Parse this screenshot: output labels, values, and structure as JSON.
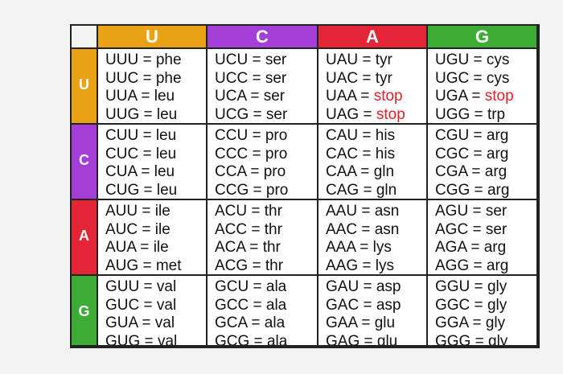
{
  "colors": {
    "U": "#e8a213",
    "C": "#a33fd7",
    "A": "#e32535",
    "G": "#3cac35",
    "stop": "#e3222a"
  },
  "column_headers": [
    "U",
    "C",
    "A",
    "G"
  ],
  "row_headers": [
    "U",
    "C",
    "A",
    "G"
  ],
  "cells": [
    [
      [
        {
          "codon": "UUU",
          "aa": "phe",
          "stop": false
        },
        {
          "codon": "UUC",
          "aa": "phe",
          "stop": false
        },
        {
          "codon": "UUA",
          "aa": "leu",
          "stop": false
        },
        {
          "codon": "UUG",
          "aa": "leu",
          "stop": false
        }
      ],
      [
        {
          "codon": "UCU",
          "aa": "ser",
          "stop": false
        },
        {
          "codon": "UCC",
          "aa": "ser",
          "stop": false
        },
        {
          "codon": "UCA",
          "aa": "ser",
          "stop": false
        },
        {
          "codon": "UCG",
          "aa": "ser",
          "stop": false
        }
      ],
      [
        {
          "codon": "UAU",
          "aa": "tyr",
          "stop": false
        },
        {
          "codon": "UAC",
          "aa": "tyr",
          "stop": false
        },
        {
          "codon": "UAA",
          "aa": "stop",
          "stop": true
        },
        {
          "codon": "UAG",
          "aa": "stop",
          "stop": true
        }
      ],
      [
        {
          "codon": "UGU",
          "aa": "cys",
          "stop": false
        },
        {
          "codon": "UGC",
          "aa": "cys",
          "stop": false
        },
        {
          "codon": "UGA",
          "aa": "stop",
          "stop": true
        },
        {
          "codon": "UGG",
          "aa": "trp",
          "stop": false
        }
      ]
    ],
    [
      [
        {
          "codon": "CUU",
          "aa": "leu",
          "stop": false
        },
        {
          "codon": "CUC",
          "aa": "leu",
          "stop": false
        },
        {
          "codon": "CUA",
          "aa": "leu",
          "stop": false
        },
        {
          "codon": "CUG",
          "aa": "leu",
          "stop": false
        }
      ],
      [
        {
          "codon": "CCU",
          "aa": "pro",
          "stop": false
        },
        {
          "codon": "CCC",
          "aa": "pro",
          "stop": false
        },
        {
          "codon": "CCA",
          "aa": "pro",
          "stop": false
        },
        {
          "codon": "CCG",
          "aa": "pro",
          "stop": false
        }
      ],
      [
        {
          "codon": "CAU",
          "aa": "his",
          "stop": false
        },
        {
          "codon": "CAC",
          "aa": "his",
          "stop": false
        },
        {
          "codon": "CAA",
          "aa": "gln",
          "stop": false
        },
        {
          "codon": "CAG",
          "aa": "gln",
          "stop": false
        }
      ],
      [
        {
          "codon": "CGU",
          "aa": "arg",
          "stop": false
        },
        {
          "codon": "CGC",
          "aa": "arg",
          "stop": false
        },
        {
          "codon": "CGA",
          "aa": "arg",
          "stop": false
        },
        {
          "codon": "CGG",
          "aa": "arg",
          "stop": false
        }
      ]
    ],
    [
      [
        {
          "codon": "AUU",
          "aa": "ile",
          "stop": false
        },
        {
          "codon": "AUC",
          "aa": "ile",
          "stop": false
        },
        {
          "codon": "AUA",
          "aa": "ile",
          "stop": false
        },
        {
          "codon": "AUG",
          "aa": "met",
          "stop": false
        }
      ],
      [
        {
          "codon": "ACU",
          "aa": "thr",
          "stop": false
        },
        {
          "codon": "ACC",
          "aa": "thr",
          "stop": false
        },
        {
          "codon": "ACA",
          "aa": "thr",
          "stop": false
        },
        {
          "codon": "ACG",
          "aa": "thr",
          "stop": false
        }
      ],
      [
        {
          "codon": "AAU",
          "aa": "asn",
          "stop": false
        },
        {
          "codon": "AAC",
          "aa": "asn",
          "stop": false
        },
        {
          "codon": "AAA",
          "aa": "lys",
          "stop": false
        },
        {
          "codon": "AAG",
          "aa": "lys",
          "stop": false
        }
      ],
      [
        {
          "codon": "AGU",
          "aa": "ser",
          "stop": false
        },
        {
          "codon": "AGC",
          "aa": "ser",
          "stop": false
        },
        {
          "codon": "AGA",
          "aa": "arg",
          "stop": false
        },
        {
          "codon": "AGG",
          "aa": "arg",
          "stop": false
        }
      ]
    ],
    [
      [
        {
          "codon": "GUU",
          "aa": "val",
          "stop": false
        },
        {
          "codon": "GUC",
          "aa": "val",
          "stop": false
        },
        {
          "codon": "GUA",
          "aa": "val",
          "stop": false
        },
        {
          "codon": "GUG",
          "aa": "val",
          "stop": false
        }
      ],
      [
        {
          "codon": "GCU",
          "aa": "ala",
          "stop": false
        },
        {
          "codon": "GCC",
          "aa": "ala",
          "stop": false
        },
        {
          "codon": "GCA",
          "aa": "ala",
          "stop": false
        },
        {
          "codon": "GCG",
          "aa": "ala",
          "stop": false
        }
      ],
      [
        {
          "codon": "GAU",
          "aa": "asp",
          "stop": false
        },
        {
          "codon": "GAC",
          "aa": "asp",
          "stop": false
        },
        {
          "codon": "GAA",
          "aa": "glu",
          "stop": false
        },
        {
          "codon": "GAG",
          "aa": "glu",
          "stop": false
        }
      ],
      [
        {
          "codon": "GGU",
          "aa": "gly",
          "stop": false
        },
        {
          "codon": "GGC",
          "aa": "gly",
          "stop": false
        },
        {
          "codon": "GGA",
          "aa": "gly",
          "stop": false
        },
        {
          "codon": "GGG",
          "aa": "gly",
          "stop": false
        }
      ]
    ]
  ]
}
